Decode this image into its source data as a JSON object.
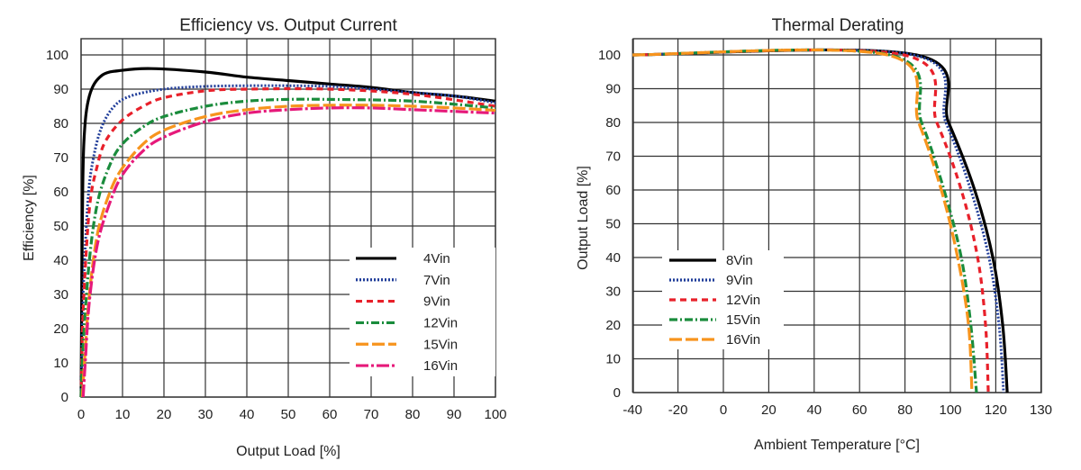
{
  "chart_data": [
    {
      "type": "line",
      "title": "Efficiency vs. Output Current",
      "xlabel": "Output Load [%]",
      "ylabel": "Efficiency [%]",
      "xlim": [
        0,
        100
      ],
      "ylim": [
        0,
        105
      ],
      "xticks": [
        0,
        10,
        20,
        30,
        40,
        50,
        60,
        70,
        80,
        90,
        100
      ],
      "yticks": [
        0,
        10,
        20,
        30,
        40,
        50,
        60,
        70,
        80,
        90,
        100
      ],
      "grid": true,
      "legend_position": "lower-right",
      "series": [
        {
          "name": "4Vin",
          "color": "#000000",
          "dash": "solid",
          "x": [
            0,
            0.3,
            0.7,
            2,
            5,
            10,
            17,
            30,
            40,
            50,
            60,
            70,
            80,
            90,
            100
          ],
          "y": [
            0,
            50,
            75,
            88,
            94,
            95.5,
            96,
            95,
            93.5,
            92.5,
            91.5,
            90.5,
            89,
            88,
            86.5
          ]
        },
        {
          "name": "7Vin",
          "color": "#1f3c99",
          "dash": "dotted",
          "x": [
            0,
            0.5,
            1.7,
            3,
            5,
            8,
            12,
            20,
            30,
            40,
            50,
            60,
            70,
            80,
            90,
            100
          ],
          "y": [
            0,
            30,
            58,
            70,
            79,
            85,
            88,
            90,
            90.8,
            91,
            91,
            90.8,
            90,
            89,
            88,
            86
          ]
        },
        {
          "name": "9Vin",
          "color": "#e8202a",
          "dash": "dashed",
          "x": [
            0,
            0.5,
            2,
            4,
            6,
            10,
            15,
            20,
            30,
            40,
            60,
            80,
            100
          ],
          "y": [
            0,
            25,
            55,
            68,
            75,
            81,
            85,
            87.5,
            89.5,
            90,
            90,
            88.5,
            85
          ]
        },
        {
          "name": "12Vin",
          "color": "#1a8c3c",
          "dash": "dashdot",
          "x": [
            0,
            0.5,
            2,
            4,
            7,
            10,
            15,
            20,
            30,
            40,
            50,
            60,
            80,
            100
          ],
          "y": [
            0,
            15,
            40,
            57,
            68,
            74,
            79,
            82,
            85,
            86.5,
            87,
            87,
            86.5,
            84.5
          ]
        },
        {
          "name": "15Vin",
          "color": "#f7941d",
          "dash": "longdash",
          "x": [
            0.3,
            0.8,
            2,
            4,
            7,
            10,
            15,
            20,
            30,
            40,
            50,
            60,
            70,
            80,
            90,
            100
          ],
          "y": [
            0,
            10,
            30,
            48,
            60,
            67,
            74,
            78,
            82,
            84,
            85,
            85.3,
            85.3,
            85,
            84.5,
            83.8
          ]
        },
        {
          "name": "16Vin",
          "color": "#e6197a",
          "dash": "longdashdot",
          "x": [
            0.5,
            1,
            2,
            4,
            7,
            10,
            15,
            20,
            30,
            40,
            50,
            60,
            70,
            80,
            100
          ],
          "y": [
            0,
            10,
            28,
            45,
            57,
            65,
            72,
            76,
            80.5,
            83,
            84,
            84.5,
            84.5,
            84,
            83
          ]
        }
      ]
    },
    {
      "type": "line",
      "title": "Thermal Derating",
      "xlabel": "Ambient Temperature [°C]",
      "ylabel": "Output Load [%]",
      "xlim": [
        -40,
        130
      ],
      "ylim": [
        0,
        105
      ],
      "xticks": [
        -40,
        -20,
        0,
        20,
        40,
        60,
        80,
        100,
        120,
        130
      ],
      "yticks": [
        0,
        10,
        20,
        30,
        40,
        50,
        60,
        70,
        80,
        90,
        100
      ],
      "grid": true,
      "legend_position": "lower-left",
      "series": [
        {
          "name": "8Vin",
          "color": "#000000",
          "dash": "solid",
          "x": [
            -40,
            85,
            99.2,
            110.7,
            118.7,
            121.6,
            122.6
          ],
          "y": [
            100,
            100,
            80,
            60,
            40,
            20,
            0
          ]
        },
        {
          "name": "9Vin",
          "color": "#1f3c99",
          "dash": "dotted",
          "x": [
            -40,
            83.7,
            98,
            109,
            117,
            120.8,
            121.8
          ],
          "y": [
            100,
            100,
            80,
            60,
            40,
            20,
            0
          ]
        },
        {
          "name": "12Vin",
          "color": "#e8202a",
          "dash": "dashed",
          "x": [
            -40,
            79.4,
            94,
            104.8,
            112,
            115.5,
            116.7
          ],
          "y": [
            100,
            100,
            80,
            60,
            40,
            20,
            0
          ]
        },
        {
          "name": "15Vin",
          "color": "#1a8c3c",
          "dash": "dashdot",
          "x": [
            -40,
            73.4,
            87.3,
            97.2,
            104.8,
            109,
            111.5
          ],
          "y": [
            100,
            100,
            80,
            60,
            40,
            20,
            0
          ]
        },
        {
          "name": "16Vin",
          "color": "#f7941d",
          "dash": "longdash",
          "x": [
            -40,
            72.2,
            86,
            96,
            103.2,
            108,
            109.5
          ],
          "y": [
            100,
            100,
            80,
            60,
            40,
            20,
            0
          ]
        }
      ]
    }
  ]
}
